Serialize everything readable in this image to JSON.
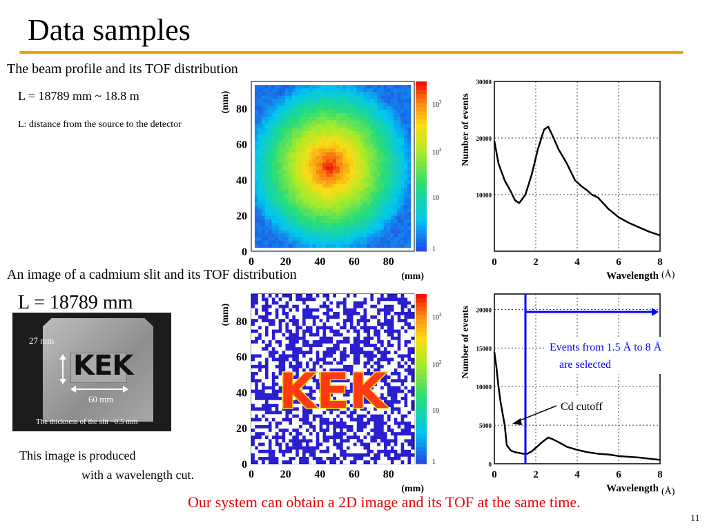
{
  "slide": {
    "title": "Data samples",
    "page_number": "11",
    "section1_heading": "The beam profile and its TOF distribution",
    "distance1": "L = 18789 mm ~ 18.8 m",
    "distance_note": "L: distance from the source to the detector",
    "section2_heading": "An image of a cadmium slit and its TOF distribution",
    "distance2": "L = 18789 mm",
    "photo": {
      "dim_height": "27 mm",
      "dim_width": "60 mm",
      "letters": "KEK",
      "thickness_note": "The thickness of the slit ~0.5 mm"
    },
    "image_note_line1": "This image is produced",
    "image_note_line2": "with a wavelength cut.",
    "conclusion": "Our system can obtain a 2D image and its TOF at the same time.",
    "accent_color": "#f0a30a",
    "conclusion_color": "#e60000"
  },
  "chart_data": [
    {
      "type": "heatmap",
      "description_id": "beam-profile",
      "xlabel": "(mm)",
      "ylabel": "(mm)",
      "xlim": [
        0,
        95
      ],
      "ylim": [
        0,
        95
      ],
      "xticks": [
        "0",
        "20",
        "40",
        "60",
        "80"
      ],
      "yticks": [
        "0",
        "20",
        "40",
        "60",
        "80"
      ],
      "colorbar_ticks": [
        "1",
        "10",
        "10",
        "10"
      ],
      "colorbar_exps": [
        "",
        "",
        "2",
        "3"
      ],
      "scale": "log"
    },
    {
      "type": "line",
      "description_id": "beam-tof",
      "xlabel": "Wavelength",
      "ylabel": "Number of events",
      "xlim": [
        0,
        8
      ],
      "ylim": [
        0,
        30000
      ],
      "xticks": [
        "0",
        "2",
        "4",
        "6",
        "8"
      ],
      "yticks": [
        "10000",
        "20000",
        "30000"
      ],
      "unit": "(Å)",
      "grid": true,
      "x": [
        0,
        0.2,
        0.5,
        0.8,
        1.0,
        1.2,
        1.5,
        1.8,
        2.1,
        2.4,
        2.6,
        2.8,
        3.1,
        3.5,
        3.9,
        4.2,
        4.5,
        4.7,
        5.0,
        5.5,
        6.0,
        6.5,
        7.0,
        7.5,
        8.0
      ],
      "y": [
        19500,
        15500,
        12500,
        10500,
        9000,
        8500,
        10000,
        13500,
        18000,
        21500,
        22000,
        20500,
        18000,
        15500,
        12500,
        11500,
        10700,
        10000,
        9500,
        7500,
        6000,
        5000,
        4200,
        3400,
        2800
      ]
    },
    {
      "type": "heatmap",
      "description_id": "cadmium-slit-image",
      "xlabel": "(mm)",
      "ylabel": "(mm)",
      "xlim": [
        0,
        95
      ],
      "ylim": [
        0,
        95
      ],
      "xticks": [
        "0",
        "20",
        "40",
        "60",
        "80"
      ],
      "yticks": [
        "0",
        "20",
        "40",
        "60",
        "80"
      ],
      "colorbar_ticks": [
        "1",
        "10",
        "10",
        "10"
      ],
      "colorbar_exps": [
        "",
        "",
        "2",
        "3"
      ],
      "letters": "KEK",
      "scale": "log"
    },
    {
      "type": "line",
      "description_id": "slit-tof",
      "xlabel": "Wavelength",
      "ylabel": "Number of events",
      "xlim": [
        0,
        8
      ],
      "ylim": [
        0,
        22000
      ],
      "xticks": [
        "0",
        "2",
        "4",
        "6",
        "8"
      ],
      "yticks": [
        "0",
        "5000",
        "10000",
        "15000",
        "20000"
      ],
      "unit": "(Å)",
      "grid": true,
      "x": [
        0,
        0.1,
        0.2,
        0.3,
        0.4,
        0.5,
        0.6,
        0.8,
        1.0,
        1.2,
        1.4,
        1.6,
        1.8,
        2.1,
        2.4,
        2.6,
        2.8,
        3.1,
        3.5,
        4.0,
        4.5,
        5.0,
        5.5,
        6.0,
        6.5,
        7.0,
        7.5,
        8.0
      ],
      "y": [
        14500,
        12500,
        10000,
        8000,
        6500,
        5000,
        2400,
        1700,
        1500,
        1400,
        1300,
        1300,
        1600,
        2300,
        3000,
        3400,
        3200,
        2800,
        2200,
        1800,
        1500,
        1300,
        1200,
        1000,
        900,
        800,
        650,
        500
      ],
      "cut_at": 1.5,
      "annotation_selected": "Events from 1.5 Å to 8 Å are selected",
      "annotation_selected_line1": "Events from 1.5 Å to 8 Å",
      "annotation_selected_line2": "are selected",
      "annotation_cutoff": "Cd cutoff"
    }
  ]
}
